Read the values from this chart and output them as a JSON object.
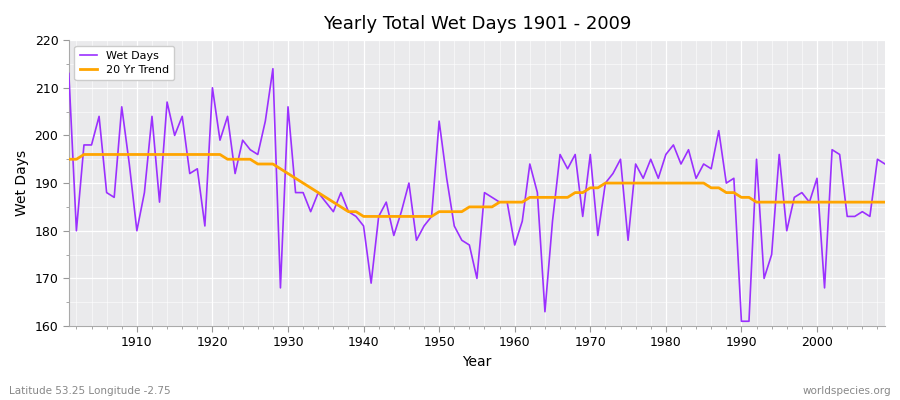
{
  "title": "Yearly Total Wet Days 1901 - 2009",
  "xlabel": "Year",
  "ylabel": "Wet Days",
  "lat_label": "Latitude 53.25 Longitude -2.75",
  "watermark": "worldspecies.org",
  "line_color": "#9B30FF",
  "trend_color": "#FFA500",
  "background_color": "#EAEAEC",
  "fig_background": "#FFFFFF",
  "ylim": [
    160,
    220
  ],
  "xlim": [
    1901,
    2009
  ],
  "yticks": [
    160,
    170,
    180,
    190,
    200,
    210,
    220
  ],
  "xticks": [
    1910,
    1920,
    1930,
    1940,
    1950,
    1960,
    1970,
    1980,
    1990,
    2000
  ],
  "years": [
    1901,
    1902,
    1903,
    1904,
    1905,
    1906,
    1907,
    1908,
    1909,
    1910,
    1911,
    1912,
    1913,
    1914,
    1915,
    1916,
    1917,
    1918,
    1919,
    1920,
    1921,
    1922,
    1923,
    1924,
    1925,
    1926,
    1927,
    1928,
    1929,
    1930,
    1931,
    1932,
    1933,
    1934,
    1935,
    1936,
    1937,
    1938,
    1939,
    1940,
    1941,
    1942,
    1943,
    1944,
    1945,
    1946,
    1947,
    1948,
    1949,
    1950,
    1951,
    1952,
    1953,
    1954,
    1955,
    1956,
    1957,
    1958,
    1959,
    1960,
    1961,
    1962,
    1963,
    1964,
    1965,
    1966,
    1967,
    1968,
    1969,
    1970,
    1971,
    1972,
    1973,
    1974,
    1975,
    1976,
    1977,
    1978,
    1979,
    1980,
    1981,
    1982,
    1983,
    1984,
    1985,
    1986,
    1987,
    1988,
    1989,
    1990,
    1991,
    1992,
    1993,
    1994,
    1995,
    1996,
    1997,
    1998,
    1999,
    2000,
    2001,
    2002,
    2003,
    2004,
    2005,
    2006,
    2007,
    2008,
    2009
  ],
  "wet_days": [
    213,
    180,
    198,
    198,
    204,
    188,
    187,
    206,
    194,
    180,
    188,
    204,
    186,
    207,
    200,
    204,
    192,
    193,
    181,
    210,
    199,
    204,
    192,
    199,
    197,
    196,
    203,
    214,
    168,
    206,
    188,
    188,
    184,
    188,
    186,
    184,
    188,
    184,
    183,
    181,
    169,
    183,
    186,
    179,
    184,
    190,
    178,
    181,
    183,
    203,
    191,
    181,
    178,
    177,
    170,
    188,
    187,
    186,
    186,
    177,
    182,
    194,
    188,
    163,
    182,
    196,
    193,
    196,
    183,
    196,
    179,
    190,
    192,
    195,
    178,
    194,
    191,
    195,
    191,
    196,
    198,
    194,
    197,
    191,
    194,
    193,
    201,
    190,
    191,
    161,
    161,
    195,
    170,
    175,
    196,
    180,
    187,
    188,
    186,
    191,
    168,
    197,
    196,
    183,
    183,
    184,
    183,
    195,
    194
  ],
  "trend": [
    195,
    195,
    196,
    196,
    196,
    196,
    196,
    196,
    196,
    196,
    196,
    196,
    196,
    196,
    196,
    196,
    196,
    196,
    196,
    196,
    196,
    195,
    195,
    195,
    195,
    194,
    194,
    194,
    193,
    192,
    191,
    190,
    189,
    188,
    187,
    186,
    185,
    184,
    184,
    183,
    183,
    183,
    183,
    183,
    183,
    183,
    183,
    183,
    183,
    184,
    184,
    184,
    184,
    185,
    185,
    185,
    185,
    186,
    186,
    186,
    186,
    187,
    187,
    187,
    187,
    187,
    187,
    188,
    188,
    189,
    189,
    190,
    190,
    190,
    190,
    190,
    190,
    190,
    190,
    190,
    190,
    190,
    190,
    190,
    190,
    189,
    189,
    188,
    188,
    187,
    187,
    186,
    186,
    186,
    186,
    186,
    186,
    186,
    186,
    186,
    186,
    186,
    186,
    186,
    186,
    186,
    186,
    186,
    186
  ]
}
